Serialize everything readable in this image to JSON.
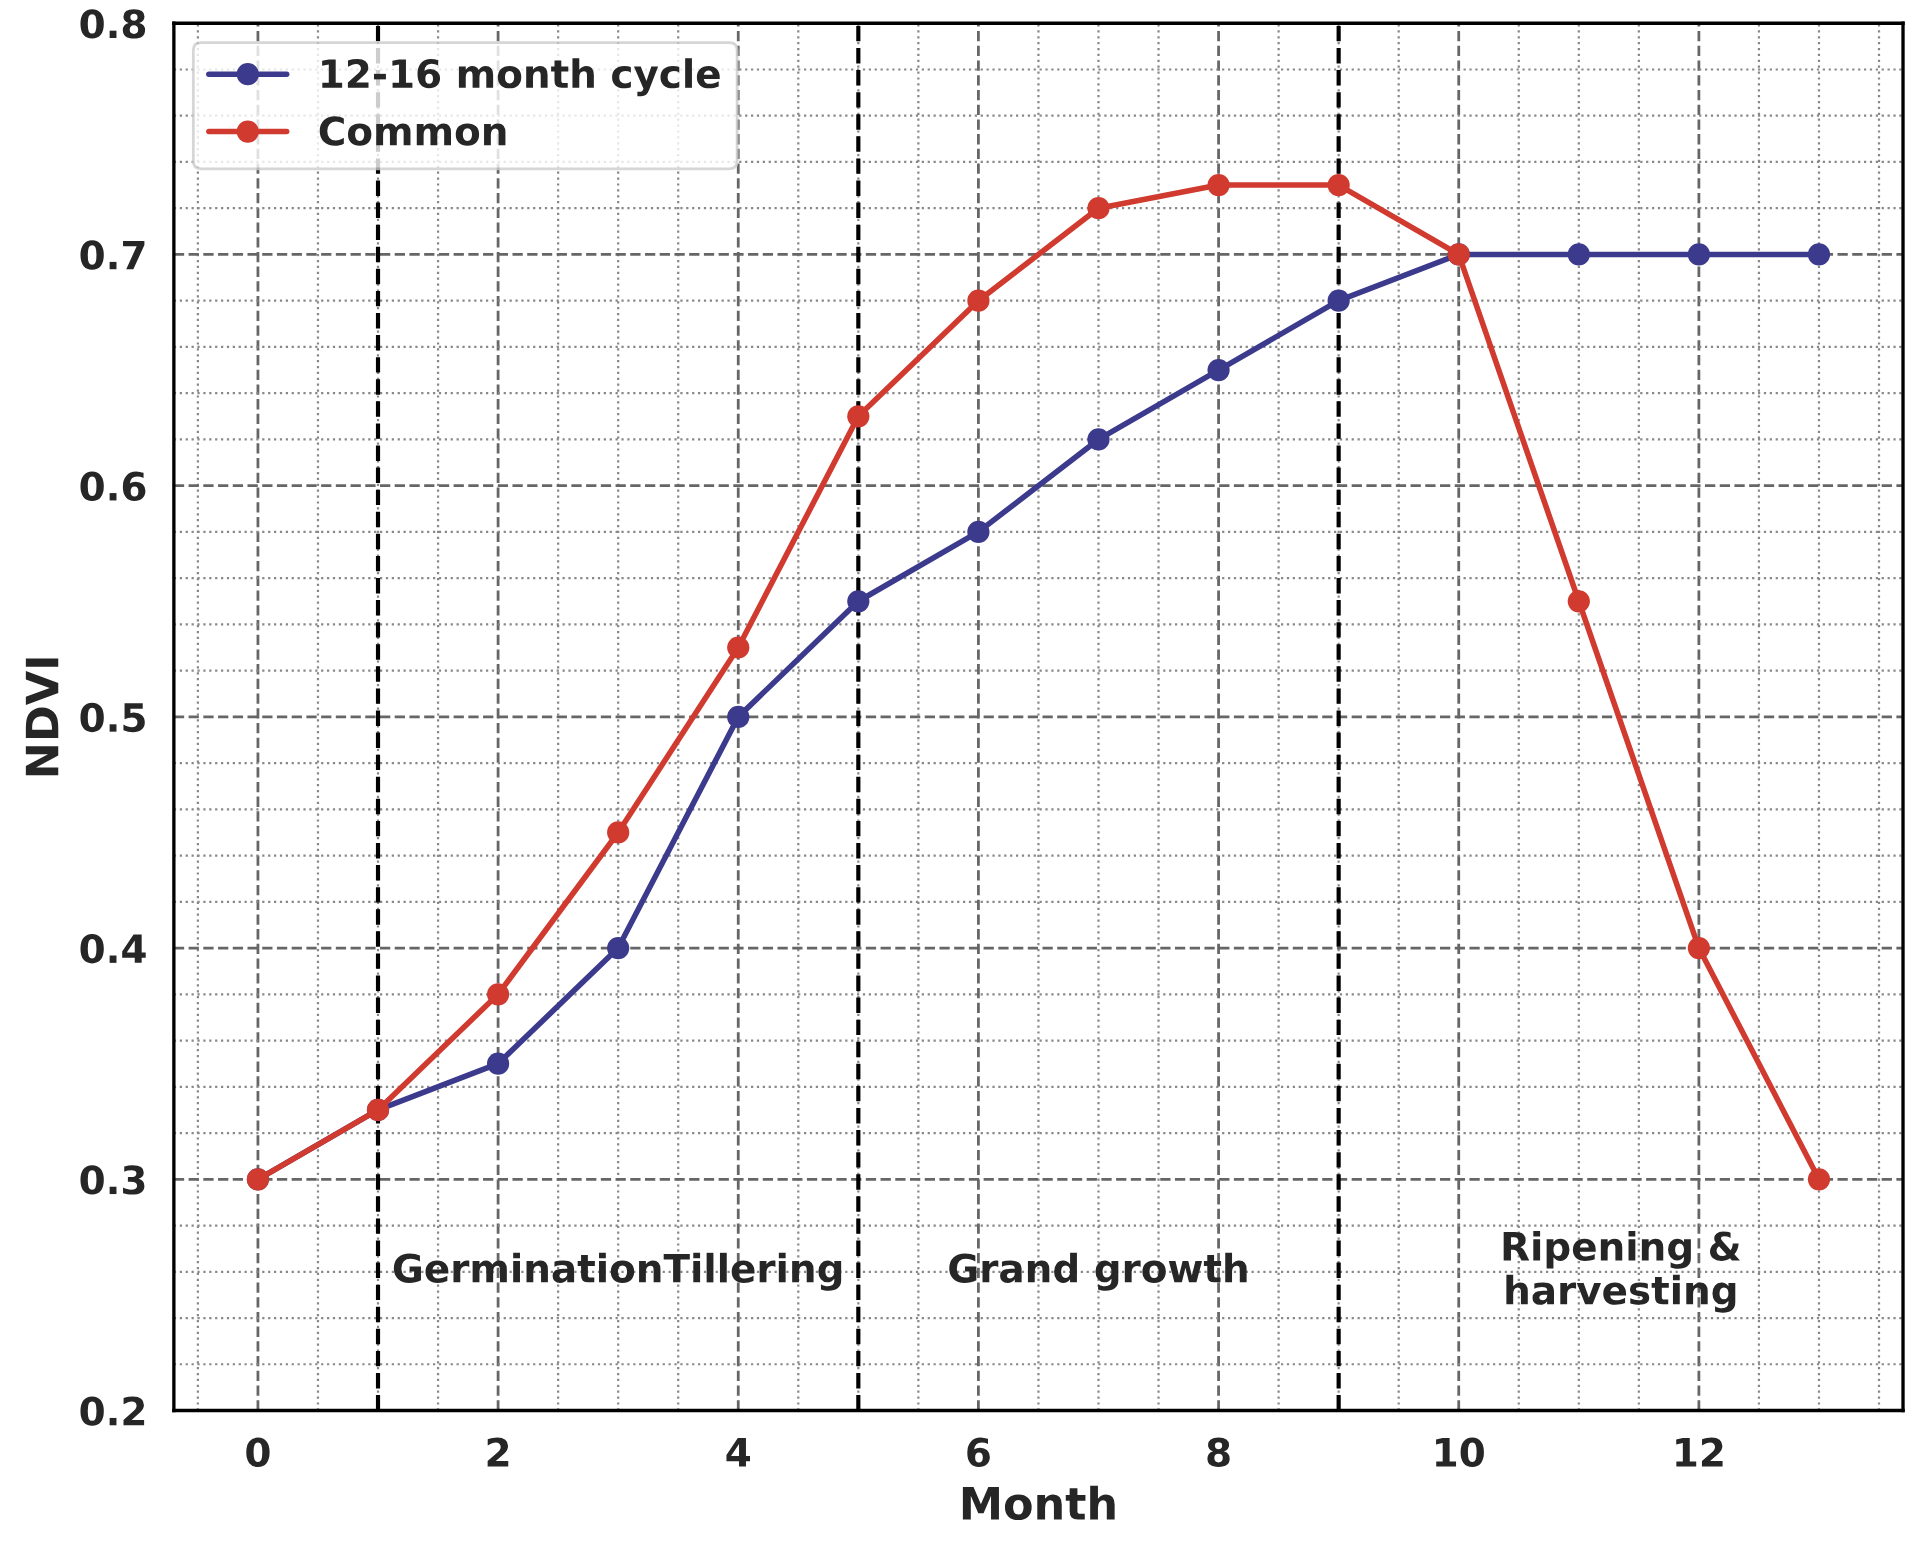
{
  "chart_data": {
    "type": "line",
    "xlabel": "Month",
    "ylabel": "NDVI",
    "x": [
      0,
      1,
      2,
      3,
      4,
      5,
      6,
      7,
      8,
      9,
      10,
      11,
      12,
      13
    ],
    "series": [
      {
        "name": "12-16 month cycle",
        "color": "#3b3a8c",
        "values": [
          0.3,
          0.33,
          0.35,
          0.4,
          0.5,
          0.55,
          0.58,
          0.62,
          0.65,
          0.68,
          0.7,
          0.7,
          0.7,
          0.7
        ]
      },
      {
        "name": "Common",
        "color": "#d03a2f",
        "values": [
          0.3,
          0.33,
          0.38,
          0.45,
          0.53,
          0.63,
          0.68,
          0.72,
          0.73,
          0.73,
          0.7,
          0.55,
          0.4,
          0.3
        ]
      }
    ],
    "xlim": [
      -0.7,
      13.7
    ],
    "xticks": [
      0,
      2,
      4,
      6,
      8,
      10,
      12
    ],
    "ylim": [
      0.2,
      0.8
    ],
    "yticks": [
      0.2,
      0.3,
      0.4,
      0.5,
      0.6,
      0.7,
      0.8
    ],
    "ref_lines": [
      {
        "axis": "x",
        "value": 1,
        "color": "#000000",
        "line_style": "dashed"
      },
      {
        "axis": "x",
        "value": 5,
        "color": "#000000",
        "line_style": "dashed"
      },
      {
        "axis": "x",
        "value": 9,
        "color": "#000000",
        "line_style": "dashed"
      }
    ],
    "annotations": [
      "GerminationTillering",
      "Grand growth",
      "Ripening &\nharvesting"
    ],
    "grid": true,
    "legend": "top left",
    "marker": "circle",
    "line_style": "solid"
  }
}
